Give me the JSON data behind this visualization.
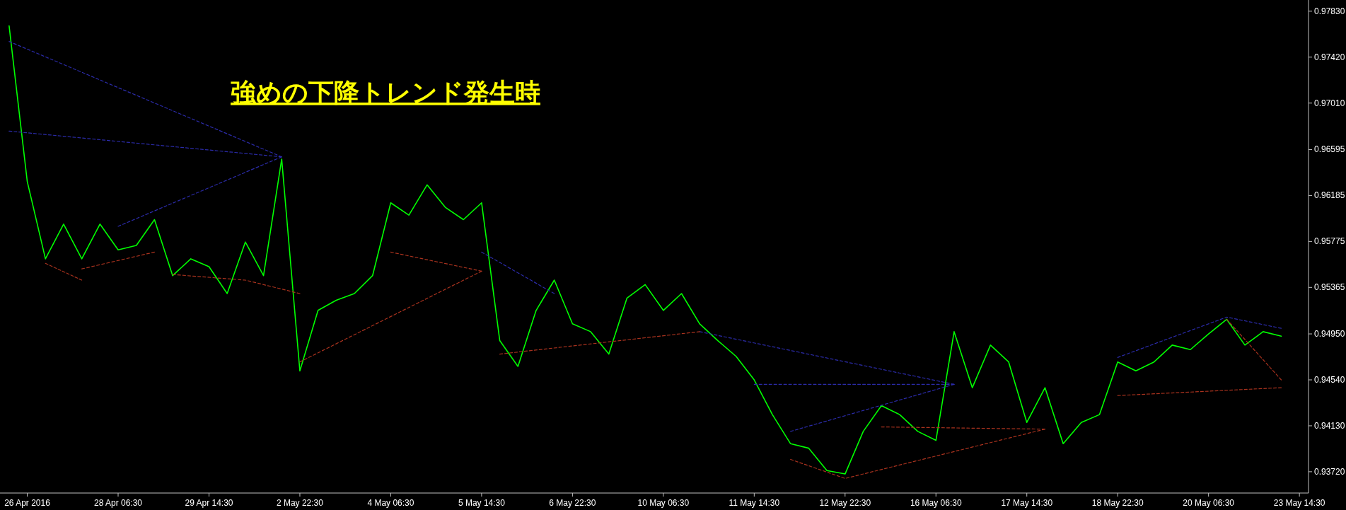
{
  "chart_data": {
    "type": "line",
    "title": "強めの下降トレンド発生時",
    "categories": [
      null,
      "26 Apr 2016",
      null,
      null,
      null,
      null,
      "28 Apr 06:30",
      null,
      null,
      null,
      null,
      "29 Apr 14:30",
      null,
      null,
      null,
      null,
      "2 May 22:30",
      null,
      null,
      null,
      null,
      "4 May 06:30",
      null,
      null,
      null,
      null,
      "5 May 14:30",
      null,
      null,
      null,
      null,
      "6 May 22:30",
      null,
      null,
      null,
      null,
      "10 May 06:30",
      null,
      null,
      null,
      null,
      "11 May 14:30",
      null,
      null,
      null,
      null,
      "12 May 22:30",
      null,
      null,
      null,
      null,
      "16 May 06:30",
      null,
      null,
      null,
      null,
      "17 May 14:30",
      null,
      null,
      null,
      null,
      "18 May 22:30",
      null,
      null,
      null,
      null,
      "20 May 06:30",
      null,
      null,
      null,
      null,
      "23 May 14:30"
    ],
    "ylim": [
      0.9353,
      0.9793
    ],
    "yticks": [
      {
        "value": 0.9372,
        "label": "0.93720"
      },
      {
        "value": 0.9413,
        "label": "0.94130"
      },
      {
        "value": 0.9454,
        "label": "0.94540"
      },
      {
        "value": 0.9495,
        "label": "0.94950"
      },
      {
        "value": 0.95365,
        "label": "0.95365"
      },
      {
        "value": 0.95775,
        "label": "0.95775"
      },
      {
        "value": 0.96185,
        "label": "0.96185"
      },
      {
        "value": 0.96595,
        "label": "0.96595"
      },
      {
        "value": 0.9701,
        "label": "0.97010"
      },
      {
        "value": 0.9742,
        "label": "0.97420"
      },
      {
        "value": 0.9783,
        "label": "0.97830"
      }
    ],
    "series": [
      {
        "color": "#00ff00",
        "line_style": "solid",
        "values": [
          0.977,
          0.9631,
          0.9562,
          0.9593,
          0.9562,
          0.9593,
          0.957,
          0.9574,
          0.9597,
          0.9547,
          0.9562,
          0.9555,
          0.9531,
          0.9577,
          0.9547,
          0.9651,
          0.9462,
          0.9516,
          0.9525,
          0.9531,
          0.9547,
          0.9612,
          0.9601,
          0.9628,
          0.9608,
          0.9597,
          0.9612,
          0.9489,
          0.9466,
          0.9516,
          0.9543,
          0.9504,
          0.9497,
          0.9477,
          0.9527,
          0.9539,
          0.9516,
          0.9531,
          0.9504,
          0.9489,
          0.9475,
          0.9454,
          0.9423,
          0.9397,
          0.9393,
          0.9373,
          0.937,
          0.9408,
          0.9431,
          0.9423,
          0.9408,
          0.94,
          0.9497,
          0.9447,
          0.9485,
          0.947,
          0.9416,
          0.9447,
          0.9397,
          0.9416,
          0.9423,
          0.947,
          0.9462,
          0.947,
          0.9485,
          0.9481,
          0.9495,
          0.9508,
          0.9485,
          0.9497,
          0.9493,
          null
        ]
      },
      {
        "color": "#2b2ba8",
        "line_style": "dashed",
        "values": [
          0.9756,
          null,
          null,
          null,
          null,
          null,
          null,
          null,
          null,
          null,
          null,
          null,
          null,
          null,
          null,
          0.9653,
          null,
          null,
          null,
          null,
          null,
          null,
          null,
          null,
          null,
          null,
          null,
          null,
          null,
          null,
          null,
          null,
          null,
          null,
          null,
          null,
          null,
          null,
          null,
          null,
          null,
          null,
          null,
          null,
          null,
          null,
          null,
          null,
          null,
          null,
          null,
          null,
          null,
          null,
          null,
          null,
          null,
          null,
          null,
          null,
          null,
          null,
          null,
          null,
          null,
          null,
          null,
          null,
          null,
          null,
          null,
          null
        ]
      },
      {
        "color": "#2b2ba8",
        "line_style": "dashed",
        "values": [
          0.9676,
          null,
          null,
          null,
          null,
          null,
          null,
          null,
          null,
          null,
          null,
          null,
          null,
          null,
          null,
          0.9653,
          null,
          null,
          null,
          null,
          null,
          null,
          null,
          null,
          null,
          null,
          null,
          null,
          null,
          null,
          null,
          null,
          null,
          null,
          null,
          null,
          null,
          null,
          null,
          null,
          null,
          null,
          null,
          null,
          null,
          null,
          null,
          null,
          null,
          null,
          null,
          null,
          null,
          null,
          null,
          null,
          null,
          null,
          null,
          null,
          null,
          null,
          null,
          null,
          null,
          null,
          null,
          null,
          null,
          null,
          null,
          null
        ]
      },
      {
        "color": "#2b2ba8",
        "line_style": "dashed",
        "values": [
          null,
          null,
          null,
          null,
          null,
          null,
          0.9591,
          null,
          null,
          null,
          null,
          null,
          null,
          null,
          null,
          0.9653,
          null,
          null,
          null,
          null,
          null,
          null,
          null,
          null,
          null,
          null,
          null,
          null,
          null,
          null,
          null,
          null,
          null,
          null,
          null,
          null,
          null,
          null,
          null,
          null,
          null,
          null,
          null,
          null,
          null,
          null,
          null,
          null,
          null,
          null,
          null,
          null,
          null,
          null,
          null,
          null,
          null,
          null,
          null,
          null,
          null,
          null,
          null,
          null,
          null,
          null,
          null,
          null,
          null,
          null,
          null,
          null
        ]
      },
      {
        "color": "#2b2ba8",
        "line_style": "dashed",
        "values": [
          null,
          null,
          null,
          null,
          null,
          null,
          null,
          null,
          null,
          null,
          null,
          null,
          null,
          null,
          null,
          null,
          null,
          null,
          null,
          null,
          null,
          null,
          null,
          null,
          null,
          null,
          0.9568,
          null,
          null,
          null,
          0.9531,
          null,
          null,
          null,
          null,
          null,
          null,
          null,
          null,
          null,
          null,
          null,
          null,
          null,
          null,
          null,
          null,
          null,
          null,
          null,
          null,
          null,
          null,
          null,
          null,
          null,
          null,
          null,
          null,
          null,
          null,
          null,
          null,
          null,
          null,
          null,
          null,
          null,
          null,
          null,
          null,
          null
        ]
      },
      {
        "color": "#2b2ba8",
        "line_style": "dashed",
        "values": [
          null,
          null,
          null,
          null,
          null,
          null,
          null,
          null,
          null,
          null,
          null,
          null,
          null,
          null,
          null,
          null,
          null,
          null,
          null,
          null,
          null,
          null,
          null,
          null,
          null,
          null,
          null,
          null,
          null,
          null,
          null,
          null,
          null,
          null,
          null,
          null,
          null,
          null,
          0.9497,
          null,
          null,
          null,
          null,
          null,
          null,
          null,
          null,
          null,
          null,
          null,
          null,
          null,
          0.945,
          null,
          null,
          null,
          null,
          null,
          null,
          null,
          null,
          null,
          null,
          null,
          null,
          null,
          null,
          null,
          null,
          null,
          null,
          null
        ]
      },
      {
        "color": "#2b2ba8",
        "line_style": "dashed",
        "values": [
          null,
          null,
          null,
          null,
          null,
          null,
          null,
          null,
          null,
          null,
          null,
          null,
          null,
          null,
          null,
          null,
          null,
          null,
          null,
          null,
          null,
          null,
          null,
          null,
          null,
          null,
          null,
          null,
          null,
          null,
          null,
          null,
          null,
          null,
          null,
          null,
          null,
          null,
          null,
          null,
          null,
          0.945,
          null,
          null,
          null,
          null,
          null,
          null,
          null,
          null,
          null,
          null,
          0.945,
          null,
          null,
          null,
          null,
          null,
          null,
          null,
          null,
          null,
          null,
          null,
          null,
          null,
          null,
          null,
          null,
          null,
          null,
          null
        ]
      },
      {
        "color": "#2b2ba8",
        "line_style": "dashed",
        "values": [
          null,
          null,
          null,
          null,
          null,
          null,
          null,
          null,
          null,
          null,
          null,
          null,
          null,
          null,
          null,
          null,
          null,
          null,
          null,
          null,
          null,
          null,
          null,
          null,
          null,
          null,
          null,
          null,
          null,
          null,
          null,
          null,
          null,
          null,
          null,
          null,
          null,
          null,
          null,
          null,
          null,
          null,
          null,
          0.9408,
          null,
          null,
          null,
          null,
          null,
          null,
          null,
          null,
          0.945,
          null,
          null,
          null,
          null,
          null,
          null,
          null,
          null,
          null,
          null,
          null,
          null,
          null,
          null,
          null,
          null,
          null,
          null,
          null
        ]
      },
      {
        "color": "#2b2ba8",
        "line_style": "dashed",
        "values": [
          null,
          null,
          null,
          null,
          null,
          null,
          null,
          null,
          null,
          null,
          null,
          null,
          null,
          null,
          null,
          null,
          null,
          null,
          null,
          null,
          null,
          null,
          null,
          null,
          null,
          null,
          null,
          null,
          null,
          null,
          null,
          null,
          null,
          null,
          null,
          null,
          null,
          null,
          null,
          null,
          null,
          null,
          null,
          null,
          null,
          null,
          null,
          null,
          null,
          null,
          null,
          null,
          null,
          null,
          null,
          null,
          null,
          null,
          null,
          null,
          null,
          0.9474,
          null,
          null,
          null,
          null,
          null,
          0.951,
          null,
          null,
          0.95,
          null
        ]
      },
      {
        "color": "#a8321e",
        "line_style": "dashed",
        "values": [
          null,
          null,
          0.9558,
          null,
          0.9543,
          null,
          null,
          null,
          null,
          null,
          null,
          null,
          null,
          null,
          null,
          null,
          null,
          null,
          null,
          null,
          null,
          null,
          null,
          null,
          null,
          null,
          null,
          null,
          null,
          null,
          null,
          null,
          null,
          null,
          null,
          null,
          null,
          null,
          null,
          null,
          null,
          null,
          null,
          null,
          null,
          null,
          null,
          null,
          null,
          null,
          null,
          null,
          null,
          null,
          null,
          null,
          null,
          null,
          null,
          null,
          null,
          null,
          null,
          null,
          null,
          null,
          null,
          null,
          null,
          null,
          null,
          null
        ]
      },
      {
        "color": "#a8321e",
        "line_style": "dashed",
        "values": [
          null,
          null,
          null,
          null,
          0.9553,
          null,
          null,
          null,
          0.9568,
          null,
          null,
          null,
          null,
          null,
          null,
          null,
          null,
          null,
          null,
          null,
          null,
          null,
          null,
          null,
          null,
          null,
          null,
          null,
          null,
          null,
          null,
          null,
          null,
          null,
          null,
          null,
          null,
          null,
          null,
          null,
          null,
          null,
          null,
          null,
          null,
          null,
          null,
          null,
          null,
          null,
          null,
          null,
          null,
          null,
          null,
          null,
          null,
          null,
          null,
          null,
          null,
          null,
          null,
          null,
          null,
          null,
          null,
          null,
          null,
          null,
          null,
          null
        ]
      },
      {
        "color": "#a8321e",
        "line_style": "dashed",
        "values": [
          null,
          null,
          null,
          null,
          null,
          null,
          null,
          null,
          null,
          0.9548,
          null,
          null,
          null,
          0.9543,
          null,
          null,
          0.9531,
          null,
          null,
          null,
          null,
          null,
          null,
          null,
          null,
          null,
          null,
          null,
          null,
          null,
          null,
          null,
          null,
          null,
          null,
          null,
          null,
          null,
          null,
          null,
          null,
          null,
          null,
          null,
          null,
          null,
          null,
          null,
          null,
          null,
          null,
          null,
          null,
          null,
          null,
          null,
          null,
          null,
          null,
          null,
          null,
          null,
          null,
          null,
          null,
          null,
          null,
          null,
          null,
          null,
          null,
          null
        ]
      },
      {
        "color": "#a8321e",
        "line_style": "dashed",
        "values": [
          null,
          null,
          null,
          null,
          null,
          null,
          null,
          null,
          null,
          null,
          null,
          null,
          null,
          null,
          null,
          null,
          0.947,
          null,
          null,
          null,
          null,
          null,
          null,
          null,
          null,
          null,
          0.9551,
          null,
          null,
          null,
          null,
          null,
          null,
          null,
          null,
          null,
          null,
          null,
          null,
          null,
          null,
          null,
          null,
          null,
          null,
          null,
          null,
          null,
          null,
          null,
          null,
          null,
          null,
          null,
          null,
          null,
          null,
          null,
          null,
          null,
          null,
          null,
          null,
          null,
          null,
          null,
          null,
          null,
          null,
          null,
          null,
          null
        ]
      },
      {
        "color": "#a8321e",
        "line_style": "dashed",
        "values": [
          null,
          null,
          null,
          null,
          null,
          null,
          null,
          null,
          null,
          null,
          null,
          null,
          null,
          null,
          null,
          null,
          null,
          null,
          null,
          null,
          null,
          0.9568,
          null,
          null,
          null,
          null,
          0.9551,
          null,
          null,
          null,
          null,
          null,
          null,
          null,
          null,
          null,
          null,
          null,
          null,
          null,
          null,
          null,
          null,
          null,
          null,
          null,
          null,
          null,
          null,
          null,
          null,
          null,
          null,
          null,
          null,
          null,
          null,
          null,
          null,
          null,
          null,
          null,
          null,
          null,
          null,
          null,
          null,
          null,
          null,
          null,
          null,
          null
        ]
      },
      {
        "color": "#a8321e",
        "line_style": "dashed",
        "values": [
          null,
          null,
          null,
          null,
          null,
          null,
          null,
          null,
          null,
          null,
          null,
          null,
          null,
          null,
          null,
          null,
          null,
          null,
          null,
          null,
          null,
          null,
          null,
          null,
          null,
          null,
          null,
          0.9477,
          null,
          null,
          null,
          null,
          null,
          null,
          null,
          null,
          null,
          null,
          0.9497,
          null,
          null,
          null,
          null,
          null,
          null,
          null,
          null,
          null,
          null,
          null,
          null,
          null,
          null,
          null,
          null,
          null,
          null,
          null,
          null,
          null,
          null,
          null,
          null,
          null,
          null,
          null,
          null,
          null,
          null,
          null,
          null,
          null
        ]
      },
      {
        "color": "#a8321e",
        "line_style": "dashed",
        "values": [
          null,
          null,
          null,
          null,
          null,
          null,
          null,
          null,
          null,
          null,
          null,
          null,
          null,
          null,
          null,
          null,
          null,
          null,
          null,
          null,
          null,
          null,
          null,
          null,
          null,
          null,
          null,
          null,
          null,
          null,
          null,
          null,
          null,
          null,
          null,
          null,
          null,
          null,
          null,
          null,
          null,
          null,
          null,
          0.9383,
          null,
          null,
          0.9366,
          null,
          null,
          null,
          null,
          null,
          null,
          null,
          null,
          null,
          null,
          0.941,
          null,
          null,
          null,
          null,
          null,
          null,
          null,
          null,
          null,
          null,
          null,
          null,
          null,
          null
        ]
      },
      {
        "color": "#a8321e",
        "line_style": "dashed",
        "values": [
          null,
          null,
          null,
          null,
          null,
          null,
          null,
          null,
          null,
          null,
          null,
          null,
          null,
          null,
          null,
          null,
          null,
          null,
          null,
          null,
          null,
          null,
          null,
          null,
          null,
          null,
          null,
          null,
          null,
          null,
          null,
          null,
          null,
          null,
          null,
          null,
          null,
          null,
          null,
          null,
          null,
          null,
          null,
          null,
          null,
          null,
          null,
          null,
          0.9412,
          null,
          null,
          null,
          null,
          null,
          null,
          null,
          null,
          0.941,
          null,
          null,
          null,
          null,
          null,
          null,
          null,
          null,
          null,
          null,
          null,
          null,
          null,
          null
        ]
      },
      {
        "color": "#a8321e",
        "line_style": "dashed",
        "values": [
          null,
          null,
          null,
          null,
          null,
          null,
          null,
          null,
          null,
          null,
          null,
          null,
          null,
          null,
          null,
          null,
          null,
          null,
          null,
          null,
          null,
          null,
          null,
          null,
          null,
          null,
          null,
          null,
          null,
          null,
          null,
          null,
          null,
          null,
          null,
          null,
          null,
          null,
          null,
          null,
          null,
          null,
          null,
          null,
          null,
          null,
          null,
          null,
          null,
          null,
          null,
          null,
          null,
          null,
          null,
          null,
          null,
          null,
          null,
          null,
          null,
          0.944,
          null,
          null,
          null,
          null,
          null,
          null,
          null,
          null,
          0.9447,
          null
        ]
      },
      {
        "color": "#a8321e",
        "line_style": "dashed",
        "values": [
          null,
          null,
          null,
          null,
          null,
          null,
          null,
          null,
          null,
          null,
          null,
          null,
          null,
          null,
          null,
          null,
          null,
          null,
          null,
          null,
          null,
          null,
          null,
          null,
          null,
          null,
          null,
          null,
          null,
          null,
          null,
          null,
          null,
          null,
          null,
          null,
          null,
          null,
          null,
          null,
          null,
          null,
          null,
          null,
          null,
          null,
          null,
          null,
          null,
          null,
          null,
          null,
          null,
          null,
          null,
          null,
          null,
          null,
          null,
          null,
          null,
          null,
          null,
          null,
          null,
          null,
          null,
          0.9508,
          null,
          null,
          0.9454,
          null
        ]
      }
    ]
  }
}
